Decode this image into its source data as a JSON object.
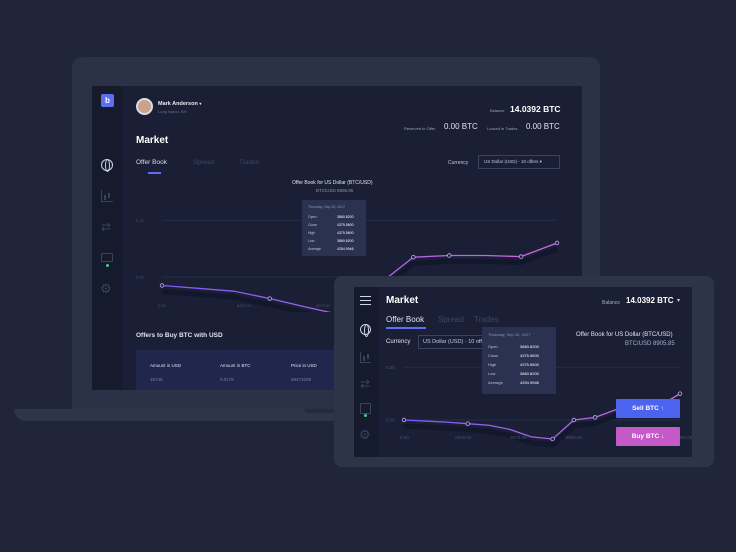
{
  "laptop": {
    "logo": "b",
    "user": {
      "name": "Mark Anderson",
      "location": "Long Island, BH"
    },
    "balance": {
      "label": "Balance",
      "value": "14.0392 BTC"
    },
    "reserved": {
      "label": "Reserved in Offer",
      "value": "0.00 BTC"
    },
    "locked": {
      "label": "Locked in Trades",
      "value": "0.00 BTC"
    },
    "title": "Market",
    "tabs": [
      "Offer Book",
      "Spread",
      "Trades"
    ],
    "currency": {
      "label": "Currency",
      "value": "US Dollar (USD) - 10 offers ▾"
    },
    "chart": {
      "title": "Offer Book for US Dollar (BTC/USD)",
      "subtitle": "BTC/USD 8905.85"
    },
    "tooltip": {
      "date": "Thursday, Sep 20, 2017",
      "rows": [
        {
          "label": "Open",
          "value": "3860.8200"
        },
        {
          "label": "Close",
          "value": "4375.5600"
        },
        {
          "label": "High",
          "value": "4375.5600"
        },
        {
          "label": "Low",
          "value": "3860.8200"
        },
        {
          "label": "Average",
          "value": "4254.9946"
        }
      ]
    },
    "offers": {
      "title": "Offers to Buy BTC with USD",
      "headers": [
        "Amount in USD",
        "Amount in BTC",
        "Price in USD"
      ],
      "row": [
        "15740",
        "0.0176",
        "89473208"
      ]
    }
  },
  "tablet": {
    "title": "Market",
    "balance": {
      "label": "Balance",
      "value": "14.0392 BTC"
    },
    "tabs": [
      "Offer Book",
      "Spread",
      "Trades"
    ],
    "currency": {
      "label": "Currency",
      "value": "US Dollar (USD) - 10 offers"
    },
    "chart": {
      "title": "Offer Book for US Dollar (BTC/USD)",
      "subtitle": "BTC/USD 8905.85"
    },
    "tooltip": {
      "date": "Thursday, Sep 20, 2017",
      "rows": [
        {
          "label": "Open",
          "value": "3860.8200"
        },
        {
          "label": "Close",
          "value": "4375.5600"
        },
        {
          "label": "High",
          "value": "4375.5600"
        },
        {
          "label": "Low",
          "value": "3860.8200"
        },
        {
          "label": "Average",
          "value": "4254.9946"
        }
      ]
    },
    "sell_label": "Sell BTC ↑",
    "buy_label": "Buy BTC ↓"
  },
  "colors": {
    "accent": "#5c6ef2",
    "sell": "#4c63f0",
    "buy": "#c45ac7",
    "line_start": "#7b5cf5",
    "line_end": "#d16ad8",
    "online": "#3fd27a"
  },
  "chart_data": [
    {
      "type": "line",
      "xticks": [
        "0.00",
        "8200.00",
        "8375.00",
        "8500.00",
        "8650.00",
        "8900.00"
      ],
      "yticks": [
        "0.25",
        "0.15",
        "0.05"
      ],
      "series": [
        {
          "values": [
            0.135,
            0.13,
            0.125,
            0.112,
            0.097,
            0.083,
            0.135,
            0.185,
            0.188,
            0.188,
            0.186,
            0.21
          ]
        }
      ]
    },
    {
      "type": "line",
      "xticks": [
        "0.00",
        "8200.00",
        "8375.00",
        "8500.00",
        "8650.00",
        "8900.00"
      ],
      "yticks": [
        "0.25",
        "0.15",
        "0.05"
      ],
      "series": [
        {
          "values": [
            0.15,
            0.148,
            0.146,
            0.143,
            0.14,
            0.132,
            0.118,
            0.114,
            0.15,
            0.155,
            0.17,
            0.175,
            0.176,
            0.2
          ]
        }
      ]
    }
  ]
}
